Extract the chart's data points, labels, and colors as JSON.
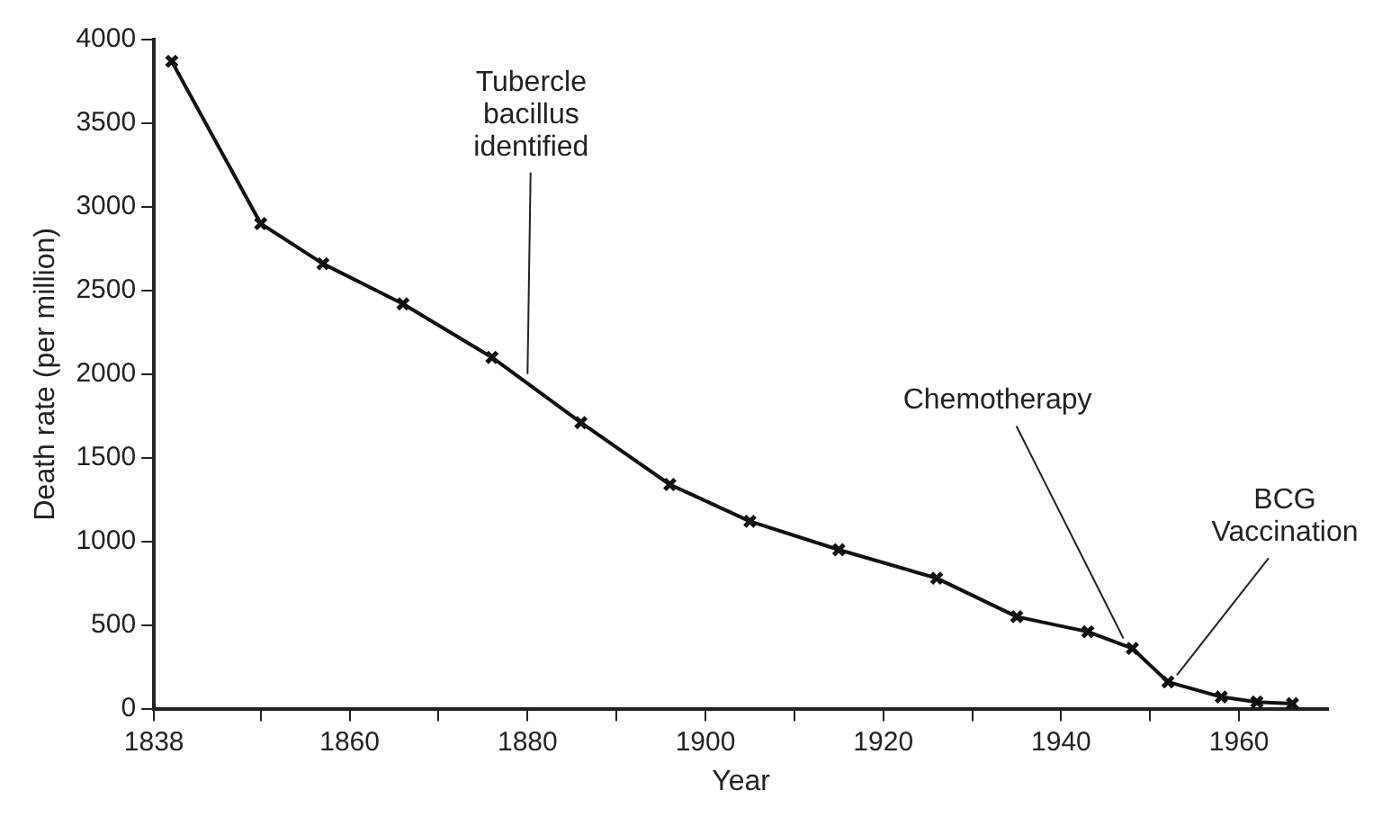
{
  "chart_data": {
    "type": "line",
    "xlabel": "Year",
    "ylabel": "Death rate (per million)",
    "x": [
      1840,
      1850,
      1857,
      1866,
      1876,
      1886,
      1896,
      1905,
      1915,
      1926,
      1935,
      1943,
      1948,
      1952,
      1958,
      1962,
      1966
    ],
    "series": [
      {
        "color": "#111111",
        "values": [
          3870,
          2900,
          2660,
          2420,
          2100,
          1710,
          1340,
          1120,
          950,
          780,
          550,
          460,
          360,
          160,
          70,
          40,
          30
        ]
      }
    ],
    "xlim": [
      1838,
      1970
    ],
    "xticks": [
      1838,
      {
        "value": 1850,
        "label": null
      },
      1860,
      {
        "value": 1870,
        "label": null
      },
      1880,
      {
        "value": 1890,
        "label": null
      },
      1900,
      {
        "value": 1910,
        "label": null
      },
      1920,
      {
        "value": 1930,
        "label": null
      },
      1940,
      {
        "value": 1950,
        "label": null
      },
      1960
    ],
    "ylim": [
      0,
      4000
    ],
    "yticks": [
      0,
      500,
      1000,
      1500,
      2000,
      2500,
      3000,
      3500,
      4000
    ],
    "grid": false,
    "legend": false,
    "marker": "cross",
    "line_style": "solid",
    "annotations": [
      {
        "text": "Tubercle\nbacillus\nidentified",
        "x": 1880,
        "y": 2000
      },
      {
        "text": "Chemotherapy",
        "x": 1947,
        "y": 420
      },
      {
        "text": "BCG\nVaccination",
        "x": 1953,
        "y": 200
      }
    ]
  }
}
